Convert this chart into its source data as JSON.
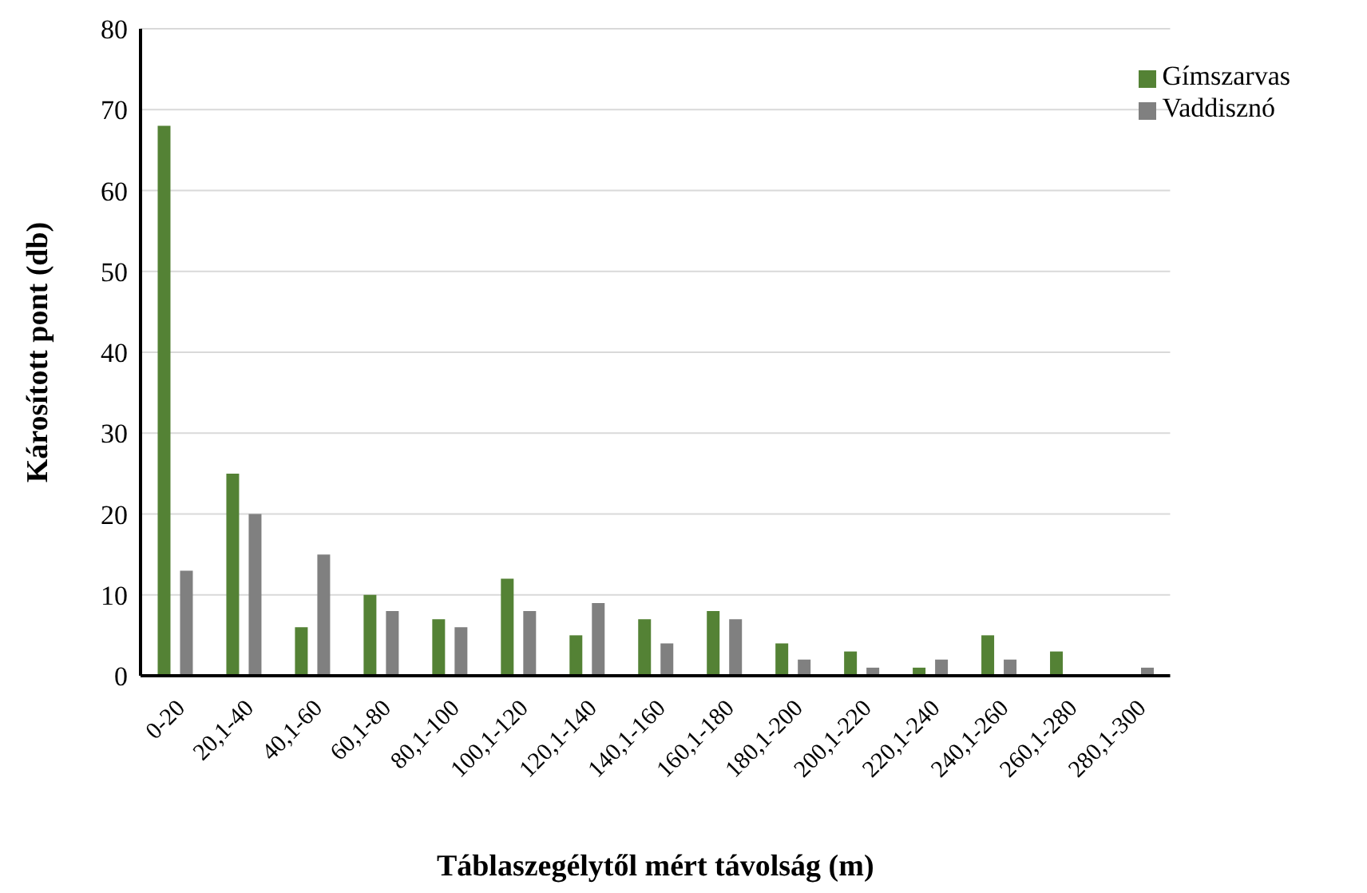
{
  "chart_data": {
    "type": "bar",
    "xlabel": "Táblaszegélytől mért távolság (m)",
    "ylabel": "Károsított pont (db)",
    "categories": [
      "0-20",
      "20,1-40",
      "40,1-60",
      "60,1-80",
      "80,1-100",
      "100,1-120",
      "120,1-140",
      "140,1-160",
      "160,1-180",
      "180,1-200",
      "200,1-220",
      "220,1-240",
      "240,1-260",
      "260,1-280",
      "280,1-300"
    ],
    "series": [
      {
        "name": "Gímszarvas",
        "color": "#548235",
        "values": [
          68,
          25,
          6,
          10,
          7,
          12,
          5,
          7,
          8,
          4,
          3,
          1,
          5,
          3,
          0
        ]
      },
      {
        "name": "Vaddisznó",
        "color": "#808080",
        "values": [
          13,
          20,
          15,
          8,
          6,
          8,
          9,
          4,
          7,
          2,
          1,
          2,
          2,
          0,
          1
        ]
      }
    ],
    "ylim": [
      0,
      80
    ],
    "yticks": [
      0,
      10,
      20,
      30,
      40,
      50,
      60,
      70,
      80
    ],
    "grid": "y",
    "legend": "top right"
  }
}
